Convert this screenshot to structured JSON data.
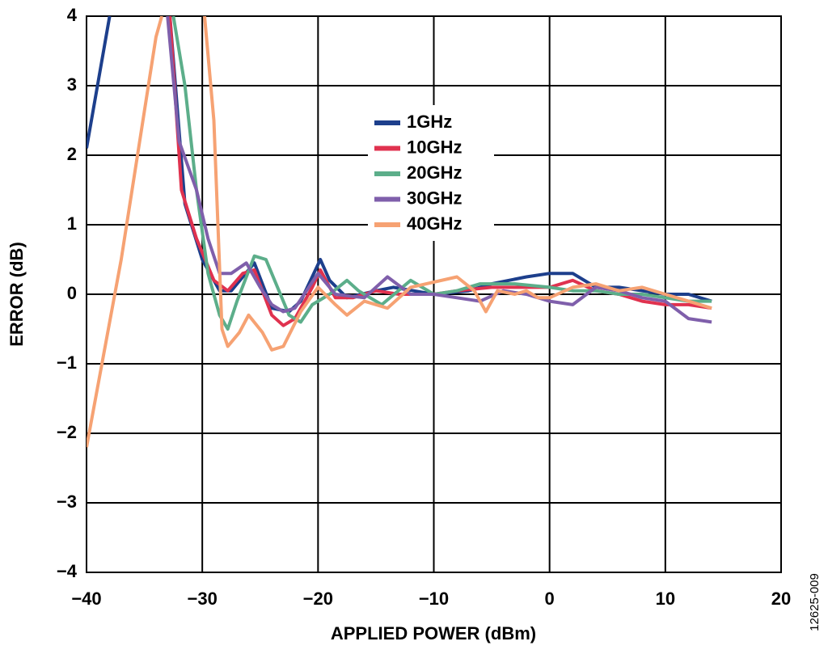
{
  "chart_data": {
    "type": "line",
    "xlabel": "APPLIED POWER (dBm)",
    "ylabel": "ERROR (dB)",
    "figure_id": "12625-009",
    "xlim": [
      -40,
      20
    ],
    "ylim": [
      -4,
      4
    ],
    "grid": true,
    "legend": "upper center",
    "xticks": [
      {
        "value": -40,
        "label": "−40"
      },
      {
        "value": -30,
        "label": "−30"
      },
      {
        "value": -20,
        "label": "−20"
      },
      {
        "value": -10,
        "label": "−10"
      },
      0,
      10,
      20
    ],
    "yticks": [
      {
        "value": -4,
        "label": "−4"
      },
      {
        "value": -3,
        "label": "−3"
      },
      {
        "value": -2,
        "label": "−2"
      },
      {
        "value": -1,
        "label": "−1"
      },
      0,
      1,
      2,
      3,
      4
    ],
    "series": [
      {
        "name": "1GHz",
        "color": "#1d3f8c",
        "x": [
          -40,
          -38,
          null,
          -32.8,
          -31.5,
          -30,
          -28.5,
          -27.5,
          -25.5,
          -24,
          -22.5,
          -21.5,
          -19.8,
          -19,
          -17.5,
          -15,
          -13.5,
          -10,
          -7,
          -5,
          -2,
          0,
          2,
          4,
          6,
          8,
          10,
          12,
          14
        ],
        "values": [
          2.1,
          4,
          null,
          4,
          1.3,
          0.5,
          0.05,
          0.05,
          0.45,
          -0.2,
          -0.25,
          -0.1,
          0.5,
          0.2,
          -0.05,
          0.05,
          0.1,
          0,
          0.05,
          0.15,
          0.25,
          0.3,
          0.3,
          0.1,
          0.1,
          0.05,
          0,
          0,
          -0.1
        ]
      },
      {
        "name": "10GHz",
        "color": "#e0324f",
        "x": [
          -32.8,
          -31.8,
          -30.5,
          -29,
          -27.8,
          -26.5,
          -25.5,
          -24,
          -23,
          -22,
          -20.5,
          -19.8,
          -18.5,
          -17,
          -15,
          -13,
          -10,
          -8,
          -5,
          -2,
          0,
          2,
          4,
          6,
          8,
          10,
          12,
          14
        ],
        "values": [
          4,
          1.5,
          0.8,
          0.2,
          0.05,
          0.3,
          0.35,
          -0.3,
          -0.45,
          -0.35,
          0.1,
          0.35,
          -0.05,
          -0.05,
          0.05,
          0,
          0,
          0.05,
          0.1,
          0.1,
          0.1,
          0.2,
          0.05,
          0,
          -0.1,
          -0.15,
          -0.15,
          -0.2
        ]
      },
      {
        "name": "20GHz",
        "color": "#5cae8a",
        "x": [
          -32.5,
          -31.5,
          -30.5,
          -29.5,
          -28.5,
          -27.8,
          -27,
          -25.5,
          -24.5,
          -23.5,
          -22.5,
          -21.5,
          -20.5,
          -19,
          -17.5,
          -16.5,
          -14.5,
          -12,
          -10,
          -8,
          -6,
          -3,
          0,
          2,
          4,
          6,
          8,
          10,
          12,
          14
        ],
        "values": [
          4,
          3,
          1.5,
          0.3,
          -0.3,
          -0.5,
          -0.1,
          0.55,
          0.5,
          0.1,
          -0.3,
          -0.4,
          -0.15,
          0,
          0.2,
          0.05,
          -0.15,
          0.2,
          0,
          0.05,
          0.15,
          0.15,
          0.1,
          0.05,
          0.05,
          0,
          0,
          -0.05,
          -0.1,
          -0.1
        ]
      },
      {
        "name": "30GHz",
        "color": "#7f5fab",
        "x": [
          -33,
          -32,
          -30.5,
          -29.5,
          -28.5,
          -27.5,
          -26.2,
          -25,
          -24,
          -23,
          -22,
          -20,
          -18.5,
          -16,
          -14,
          -12,
          -10,
          -8,
          -6,
          -4,
          -2,
          0,
          2,
          4,
          6,
          8,
          10,
          12,
          14
        ],
        "values": [
          4,
          2.2,
          1.5,
          0.8,
          0.3,
          0.3,
          0.45,
          0.1,
          -0.15,
          -0.25,
          -0.2,
          0.3,
          0,
          -0.05,
          0.25,
          0,
          0,
          -0.05,
          -0.1,
          0.05,
          0,
          -0.1,
          -0.15,
          0.1,
          0.05,
          -0.05,
          -0.1,
          -0.35,
          -0.4
        ]
      },
      {
        "name": "40GHz",
        "color": "#f6a273",
        "x": [
          -40,
          -37,
          -34,
          -33.5,
          null,
          -29.8,
          -29,
          -28.3,
          -27.8,
          -26.8,
          -26,
          -24.8,
          -24,
          -23,
          -21.5,
          -20,
          -18.5,
          -17.5,
          -16,
          -14,
          -12,
          -8,
          -6.5,
          -5.5,
          -4.5,
          -3,
          -2,
          -1,
          0,
          2,
          4,
          6,
          8,
          10,
          12,
          14
        ],
        "values": [
          -2.2,
          0.5,
          3.7,
          4,
          null,
          4,
          2.5,
          -0.5,
          -0.75,
          -0.55,
          -0.3,
          -0.55,
          -0.8,
          -0.75,
          -0.25,
          0.1,
          -0.15,
          -0.3,
          -0.1,
          -0.2,
          0.1,
          0.25,
          0.05,
          -0.25,
          0.05,
          0,
          0.05,
          -0.05,
          -0.05,
          0.1,
          0.15,
          0.05,
          0.1,
          0,
          -0.1,
          -0.2
        ]
      }
    ]
  }
}
